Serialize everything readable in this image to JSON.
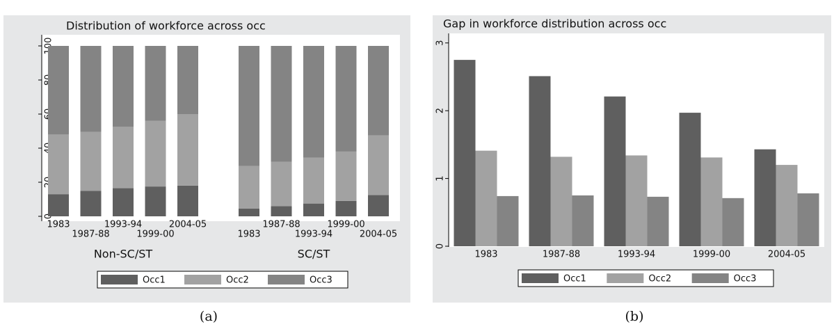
{
  "chart_data": [
    {
      "type": "stacked_bar",
      "title": "Distribution of workforce across occ",
      "groups": [
        "Non-SC/ST",
        "SC/ST"
      ],
      "categories": [
        "1983",
        "1987-88",
        "1993-94",
        "1999-00",
        "2004-05",
        "1983",
        "1987-88",
        "1993-94",
        "1999-00",
        "2004-05"
      ],
      "series": [
        {
          "name": "Occ1",
          "color": "#5f5f5f",
          "values": [
            13,
            15,
            16.5,
            17.5,
            18,
            4.5,
            6,
            7.5,
            9,
            12.5
          ]
        },
        {
          "name": "Occ2",
          "color": "#a2a2a2",
          "values": [
            35,
            34.5,
            36,
            38.5,
            42,
            25,
            26,
            27,
            29,
            35
          ]
        },
        {
          "name": "Occ3",
          "color": "#848484",
          "values": [
            52,
            50.5,
            47.5,
            44,
            40,
            70.5,
            68,
            65.5,
            62,
            52.5
          ]
        }
      ],
      "ylim": [
        0,
        100
      ],
      "yticks": [
        0,
        20,
        40,
        60,
        80,
        100
      ]
    },
    {
      "type": "bar",
      "title": "Gap in workforce distribution across occ",
      "categories": [
        "1983",
        "1987-88",
        "1993-94",
        "1999-00",
        "2004-05"
      ],
      "series": [
        {
          "name": "Occ1",
          "color": "#5f5f5f",
          "values": [
            2.75,
            2.51,
            2.21,
            1.97,
            1.43
          ]
        },
        {
          "name": "Occ2",
          "color": "#a2a2a2",
          "values": [
            1.41,
            1.32,
            1.34,
            1.31,
            1.2
          ]
        },
        {
          "name": "Occ3",
          "color": "#848484",
          "values": [
            0.74,
            0.75,
            0.73,
            0.71,
            0.78
          ]
        }
      ],
      "ylim": [
        0,
        3.1
      ],
      "yticks": [
        0,
        1,
        2,
        3
      ]
    }
  ],
  "captions": [
    "(a)",
    "(b)"
  ]
}
